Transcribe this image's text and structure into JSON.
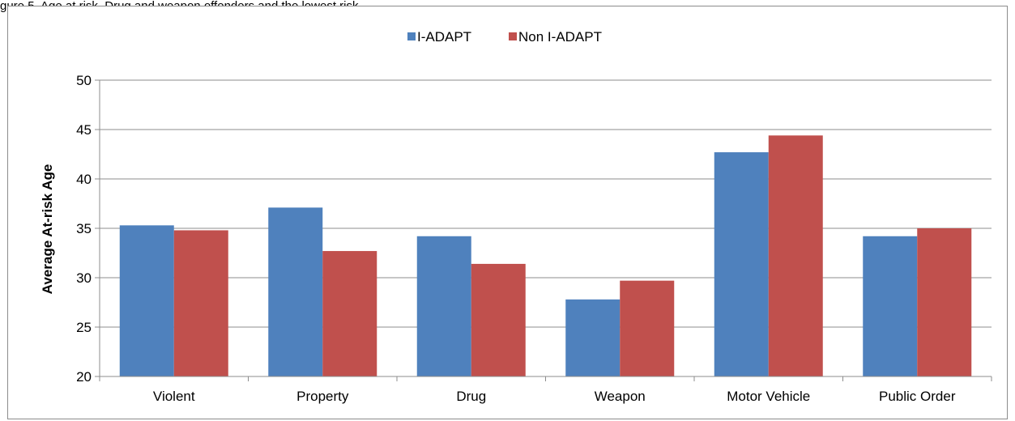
{
  "header": {
    "caption": "gure 5. Age at risk. Drug and weapon offenders and the lowest risk"
  },
  "chart_data": {
    "type": "bar",
    "categories": [
      "Violent",
      "Property",
      "Drug",
      "Weapon",
      "Motor Vehicle",
      "Public Order"
    ],
    "series": [
      {
        "name": "I-ADAPT",
        "values": [
          35.3,
          37.1,
          34.2,
          27.8,
          42.7,
          34.2
        ],
        "color": "#4f81bd"
      },
      {
        "name": "Non I-ADAPT",
        "values": [
          34.8,
          32.7,
          31.4,
          29.7,
          44.4,
          35.0
        ],
        "color": "#c0504d"
      }
    ],
    "title": "",
    "xlabel": "",
    "ylabel": "Average At-risk Age",
    "ylim": [
      20,
      50
    ],
    "yticks": [
      20,
      25,
      30,
      35,
      40,
      45,
      50
    ],
    "grid": true,
    "legend": "top-center"
  }
}
